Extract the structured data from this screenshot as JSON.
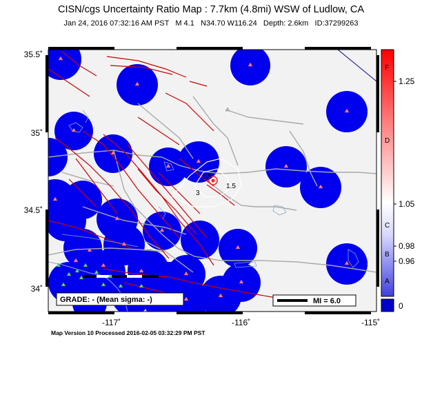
{
  "title": "CISN/cgs Uncertainty Ratio Map : 7.7km (4.8mi) WSW of Ludlow, CA",
  "subtitle": "Jan 24, 2016 07:32:16 AM PST   M 4.1   N34.70 W116.24   Depth: 2.6km   ID:37299263",
  "footer": "Map Version 10 Processed 2016-02-05 03:32:29 PM PST",
  "grade_text": "GRADE: - (Mean sigma: -)",
  "mi_legend": "MI = 6.0",
  "x_ticks": [
    "-117˚",
    "-116˚",
    "-115˚"
  ],
  "y_ticks": [
    "35.5˚",
    "35˚",
    "34.5˚",
    "34˚"
  ],
  "colorbar": {
    "labels": [
      "1.25",
      "1.05",
      "0.98",
      "0.96",
      "0"
    ],
    "grades": [
      "F",
      "D",
      "C",
      "B",
      "A"
    ],
    "top_color": "#ff0000",
    "mid_color": "#ffffff",
    "bottom_color": "#0000cc"
  },
  "contour_labels": [
    "1.5",
    "3",
    "1.5"
  ],
  "colors": {
    "ocean_blue": "#0000ee",
    "fault": "#cc0000",
    "road": "#aaaaaa",
    "station": "#ff7f7f",
    "station_green": "#66cc66",
    "land": "#f2f2f2"
  }
}
